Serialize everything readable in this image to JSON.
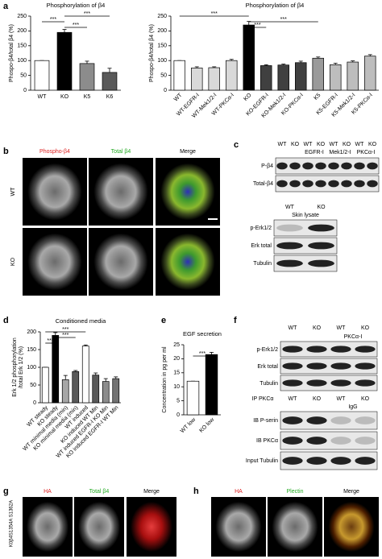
{
  "chart_data": [
    {
      "type": "bar",
      "title": "Phosphorylation of β4",
      "y_label": [
        "Phospo-β4/total β4 (%)"
      ],
      "categories": [
        "WT",
        "KO",
        "K5",
        "K6"
      ],
      "values": [
        100,
        195,
        90,
        60
      ],
      "errors": [
        0,
        10,
        8,
        14
      ],
      "colors": [
        "#ffffff",
        "#000000",
        "#8c8c8c",
        "#595959"
      ],
      "ylim": [
        0,
        250
      ],
      "yticks": [
        0,
        50,
        100,
        150,
        200,
        250
      ],
      "annotations": [
        "***",
        "***",
        "***"
      ]
    },
    {
      "type": "bar",
      "title": "Phosphorylation of β4",
      "y_label": [
        "Phospo-β4/total β4 (%)"
      ],
      "categories": [
        "WT",
        "WT-EGFR-I",
        "WT-Mek1/2-I",
        "WT-PKCα-I",
        "KO",
        "KO-EGFR-I",
        "KO-Mek1/2-I",
        "KO-PKCα-I",
        "K5",
        "K5-EGFR-I",
        "K5-Mek1/2-I",
        "K5-PKCα-I"
      ],
      "values": [
        100,
        75,
        76,
        100,
        220,
        83,
        85,
        93,
        108,
        86,
        95,
        115
      ],
      "errors": [
        0,
        4,
        3,
        4,
        12,
        3,
        3,
        5,
        4,
        5,
        4,
        5
      ],
      "colors": [
        "#ffffff",
        "#d9d9d9",
        "#d9d9d9",
        "#d9d9d9",
        "#000000",
        "#404040",
        "#404040",
        "#404040",
        "#9a9a9a",
        "#bdbdbd",
        "#bdbdbd",
        "#bdbdbd"
      ],
      "ylim": [
        0,
        250
      ],
      "yticks": [
        0,
        50,
        100,
        150,
        200,
        250
      ],
      "annotations": [
        "***",
        "***",
        "***"
      ]
    },
    {
      "type": "bar",
      "title": "Conditioned media",
      "y_label": [
        "Erk 1/2 phosphorylation",
        "/total Erk 1/2 (%)"
      ],
      "categories": [
        "WT steady",
        "KO steady",
        "WT minimal media (min)",
        "KO minimal media (min)",
        "WT induced",
        "KO induced WT Min",
        "WT induced EGFR-I KO Min",
        "KO induced EGFR-I WT Min"
      ],
      "values": [
        100,
        190,
        65,
        88,
        160,
        78,
        60,
        68
      ],
      "errors": [
        0,
        8,
        12,
        3,
        3,
        6,
        8,
        5
      ],
      "colors": [
        "#ffffff",
        "#000000",
        "#a6a6a6",
        "#595959",
        "#ffffff",
        "#595959",
        "#8c8c8c",
        "#737373"
      ],
      "ylim": [
        0,
        200
      ],
      "yticks": [
        0,
        50,
        100,
        150,
        200
      ],
      "annotations": [
        "***",
        "***",
        "***"
      ]
    },
    {
      "type": "bar",
      "title": "EGF secretion",
      "y_label": [
        "Concentration in pg per ml"
      ],
      "categories": [
        "WT low",
        "KO low"
      ],
      "values": [
        12,
        21.5
      ],
      "errors": [
        0,
        0.8
      ],
      "colors": [
        "#ffffff",
        "#000000"
      ],
      "ylim": [
        0,
        25
      ],
      "yticks": [
        0,
        5,
        10,
        15,
        20,
        25
      ],
      "annotations": [
        "***"
      ]
    }
  ],
  "panel_letters": [
    "a",
    "b",
    "c",
    "d",
    "e",
    "f",
    "g",
    "h"
  ],
  "b": {
    "columns": [
      "Phospho-β4",
      "Total β4",
      "Merge"
    ],
    "rows": [
      "WT",
      "KO"
    ]
  },
  "c": {
    "headers": [
      "WT",
      "KO",
      "WT",
      "KO",
      "WT",
      "KO",
      "WT",
      "KO"
    ],
    "inhibitors": [
      "EGFR-I",
      "Mek1/2-I",
      "PKCα-I"
    ],
    "rows": [
      "P-β4",
      "Total-β4"
    ],
    "lysate_headers": [
      "WT",
      "KO"
    ],
    "lysate_title": "Skin lysate",
    "lysate_rows": [
      "p-Erk1/2",
      "Erk total",
      "Tubulin"
    ]
  },
  "f": {
    "headers": [
      "WT",
      "KO",
      "WT",
      "KO"
    ],
    "inhibitor": "PKCα-I",
    "rows": [
      "p-Erk1/2",
      "Erk total",
      "Tubulin"
    ],
    "ip_label": "IP PKCα",
    "ip_headers": [
      "WT",
      "KO",
      "WT",
      "KO"
    ],
    "igg": "IgG",
    "ip_rows": [
      "IB P-serin",
      "IB PKCα",
      "Input Tubulin"
    ]
  },
  "g": {
    "side_label": "K0β4S1354A S1362A",
    "columns": [
      "HA",
      "Total β4",
      "Merge"
    ]
  },
  "h": {
    "columns": [
      "HA",
      "Plectin",
      "Merge"
    ]
  }
}
